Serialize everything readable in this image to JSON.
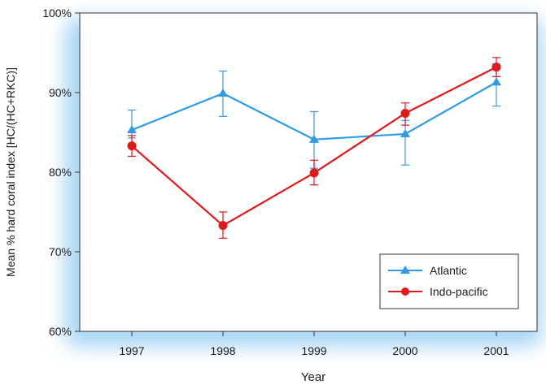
{
  "chart_data": {
    "type": "line",
    "title": "",
    "xlabel": "Year",
    "ylabel": "Mean % hard coral index [HC/(HC+RKC)]",
    "x": [
      "1997",
      "1998",
      "1999",
      "2000",
      "2001"
    ],
    "ylim": [
      60,
      100
    ],
    "yticks": [
      60,
      70,
      80,
      90,
      100
    ],
    "ytick_labels": [
      "60%",
      "70%",
      "80%",
      "90%",
      "100%"
    ],
    "grid": false,
    "legend_position": "bottom-right",
    "series": [
      {
        "name": "Atlantic",
        "color": "#2f9be8",
        "marker": "triangle",
        "values": [
          85.3,
          89.9,
          84.1,
          84.8,
          91.3
        ],
        "err_low": [
          84.3,
          87.0,
          80.5,
          80.9,
          88.3
        ],
        "err_high": [
          87.8,
          92.7,
          87.6,
          86.5,
          93.6
        ]
      },
      {
        "name": "Indo-pacific",
        "color": "#e0191c",
        "marker": "circle",
        "values": [
          83.3,
          73.3,
          79.9,
          87.4,
          93.2
        ],
        "err_low": [
          82.0,
          71.7,
          78.4,
          85.9,
          92.0
        ],
        "err_high": [
          84.6,
          75.0,
          81.5,
          88.7,
          94.4
        ]
      }
    ]
  }
}
